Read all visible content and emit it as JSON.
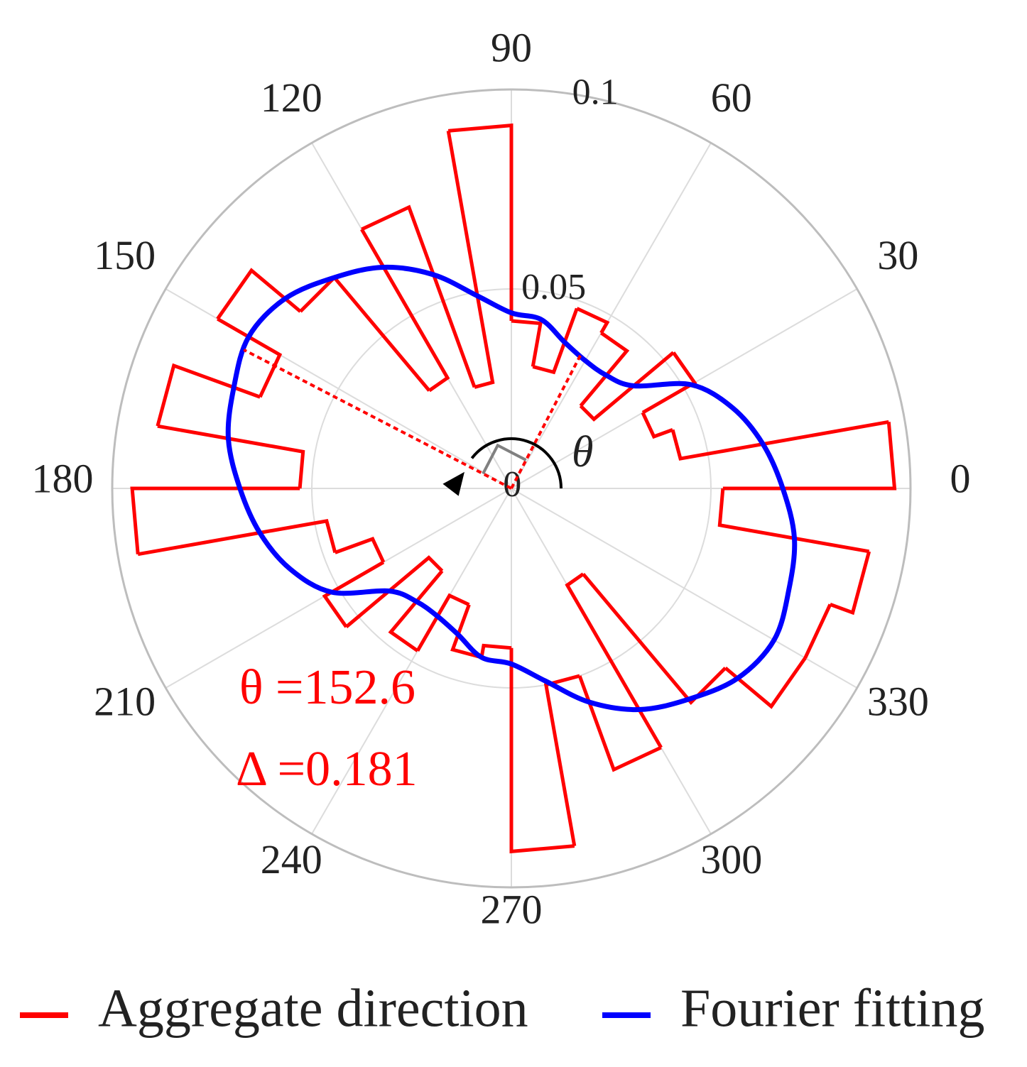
{
  "chart_data": {
    "type": "polar",
    "rlim": [
      0,
      0.1
    ],
    "rticks": [
      0,
      0.05,
      0.1
    ],
    "thetaticks": [
      0,
      30,
      60,
      90,
      120,
      150,
      180,
      210,
      240,
      270,
      300,
      330
    ],
    "grid": true,
    "series": [
      {
        "name": "Aggregate direction",
        "type": "bar",
        "color": "#ff0000",
        "theta": [
          0,
          10,
          20,
          30,
          40,
          50,
          60,
          70,
          80,
          90,
          100,
          110,
          120,
          130,
          140,
          150,
          160,
          170,
          180,
          190,
          200,
          210,
          220,
          230,
          240,
          250,
          260,
          270,
          280,
          290,
          300,
          310,
          320,
          330,
          340,
          350
        ],
        "values": [
          0.096,
          0.043,
          0.038,
          0.053,
          0.027,
          0.045,
          0.048,
          0.031,
          0.042,
          0.091,
          0.027,
          0.075,
          0.032,
          0.069,
          0.085,
          0.067,
          0.09,
          0.053,
          0.095,
          0.047,
          0.037,
          0.054,
          0.027,
          0.047,
          0.031,
          0.043,
          0.04,
          0.091,
          0.05,
          0.075,
          0.028,
          0.07,
          0.085,
          0.085,
          0.091,
          0.053
        ]
      },
      {
        "name": "Fourier fitting",
        "type": "line",
        "color": "#0000ff",
        "theta": [
          0,
          10,
          20,
          30,
          40,
          50,
          60,
          70,
          80,
          90,
          100,
          110,
          120,
          130,
          140,
          150,
          160,
          170,
          180,
          190,
          200,
          210,
          220,
          230,
          240,
          250,
          260,
          270,
          280,
          290,
          300,
          310,
          320,
          330,
          340,
          350
        ],
        "values": [
          0.068,
          0.064,
          0.059,
          0.052,
          0.04,
          0.037,
          0.037,
          0.039,
          0.043,
          0.044,
          0.049,
          0.057,
          0.064,
          0.069,
          0.074,
          0.076,
          0.074,
          0.072,
          0.068,
          0.064,
          0.059,
          0.052,
          0.04,
          0.037,
          0.037,
          0.039,
          0.043,
          0.044,
          0.049,
          0.057,
          0.064,
          0.069,
          0.074,
          0.076,
          0.074,
          0.072
        ]
      }
    ],
    "theta_symbol": "θ",
    "principal_direction": 152.6,
    "annotations": [
      "θ =152.6",
      "Δ =0.181"
    ]
  }
}
